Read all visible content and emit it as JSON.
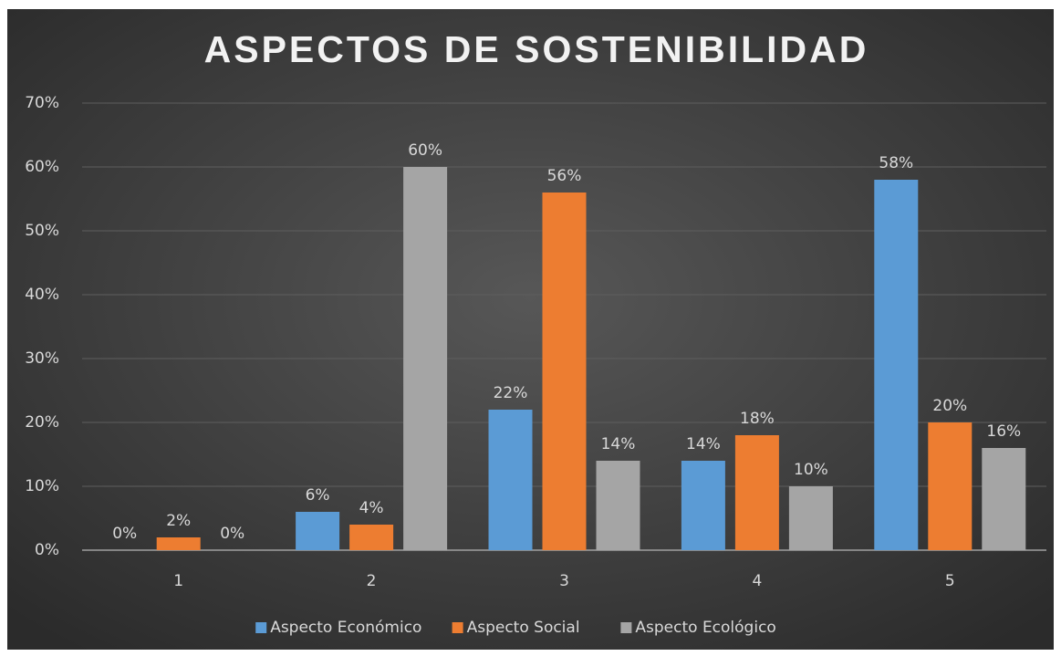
{
  "chart_data": {
    "type": "bar",
    "title": "ASPECTOS DE SOSTENIBILIDAD",
    "categories": [
      "1",
      "2",
      "3",
      "4",
      "5"
    ],
    "series": [
      {
        "name": "Aspecto Económico",
        "color": "#5b9bd5",
        "values": [
          0,
          6,
          22,
          14,
          58
        ],
        "value_labels": [
          "0%",
          "6%",
          "22%",
          "14%",
          "58%"
        ]
      },
      {
        "name": "Aspecto Social",
        "color": "#ed7d31",
        "values": [
          2,
          4,
          56,
          18,
          20
        ],
        "value_labels": [
          "2%",
          "4%",
          "56%",
          "18%",
          "20%"
        ]
      },
      {
        "name": "Aspecto Ecológico",
        "color": "#a5a5a5",
        "values": [
          0,
          60,
          14,
          10,
          16
        ],
        "value_labels": [
          "0%",
          "60%",
          "14%",
          "10%",
          "16%"
        ]
      }
    ],
    "ylim": [
      0,
      70
    ],
    "yticks": [
      {
        "value": 0,
        "label": "0%"
      },
      {
        "value": 10,
        "label": "10%"
      },
      {
        "value": 20,
        "label": "20%"
      },
      {
        "value": 30,
        "label": "30%"
      },
      {
        "value": 40,
        "label": "40%"
      },
      {
        "value": 50,
        "label": "50%"
      },
      {
        "value": 60,
        "label": "60%"
      },
      {
        "value": 70,
        "label": "70%"
      }
    ],
    "grid": true,
    "legend": "bottom"
  }
}
